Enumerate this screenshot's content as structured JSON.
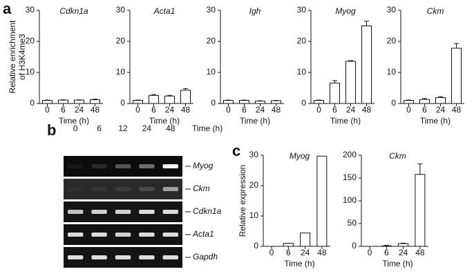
{
  "panel_labels": [
    "a",
    "b",
    "c"
  ],
  "gel": {
    "lanes": [
      "0",
      "6",
      "12",
      "24",
      "48"
    ],
    "time_label": "Time (h)",
    "genes": [
      "Myog",
      "Ckm",
      "Cdkn1a",
      "Acta1",
      "Gapdh"
    ]
  },
  "chart_data": [
    {
      "type": "bar",
      "title": "Cdkn1a",
      "ylabel": [
        "Relative enrichment",
        "of H3K4me3"
      ],
      "xlabel": "Time (h)",
      "categories": [
        "0",
        "6",
        "24",
        "48"
      ],
      "values": [
        1.0,
        1.1,
        1.1,
        1.2
      ],
      "errors": [
        0.1,
        0.1,
        0.1,
        0.2
      ],
      "ylim": [
        0,
        30
      ],
      "yticks": [
        0,
        10,
        20,
        30
      ]
    },
    {
      "type": "bar",
      "title": "Acta1",
      "xlabel": "Time (h)",
      "categories": [
        "0",
        "6",
        "24",
        "48"
      ],
      "values": [
        1.0,
        2.6,
        2.4,
        4.3
      ],
      "errors": [
        0.1,
        0.3,
        0.2,
        0.5
      ],
      "ylim": [
        0,
        30
      ],
      "yticks": [
        0,
        10,
        20,
        30
      ]
    },
    {
      "type": "bar",
      "title": "Igh",
      "xlabel": "Time (h)",
      "categories": [
        "0",
        "6",
        "24",
        "48"
      ],
      "values": [
        1.0,
        1.0,
        0.8,
        0.9
      ],
      "errors": [
        0.1,
        0.1,
        0.1,
        0.1
      ],
      "ylim": [
        0,
        30
      ],
      "yticks": [
        0,
        10,
        20,
        30
      ]
    },
    {
      "type": "bar",
      "title": "Myog",
      "xlabel": "Time (h)",
      "categories": [
        "0",
        "6",
        "24",
        "48"
      ],
      "values": [
        1.0,
        6.6,
        13.6,
        25.0
      ],
      "errors": [
        0.1,
        0.8,
        0.2,
        1.5
      ],
      "ylim": [
        0,
        30
      ],
      "yticks": [
        0,
        10,
        20,
        30
      ]
    },
    {
      "type": "bar",
      "title": "Ckm",
      "xlabel": "Time (h)",
      "categories": [
        "0",
        "6",
        "24",
        "48"
      ],
      "values": [
        1.0,
        1.3,
        1.9,
        17.8
      ],
      "errors": [
        0.1,
        0.3,
        0.3,
        1.5
      ],
      "ylim": [
        0,
        30
      ],
      "yticks": [
        0,
        10,
        20,
        30
      ]
    },
    {
      "type": "bar",
      "title": "Myog",
      "ylabel": "Relative expression",
      "xlabel": "Time (h)",
      "categories": [
        "0",
        "6",
        "24",
        "48"
      ],
      "values": [
        0,
        1.0,
        4.4,
        29.7
      ],
      "ylim": [
        0,
        30
      ],
      "yticks": [
        0,
        10,
        20,
        30
      ]
    },
    {
      "type": "bar",
      "title": "Ckm",
      "xlabel": "Time (h)",
      "categories": [
        "0",
        "6",
        "24",
        "48"
      ],
      "values": [
        0,
        1.0,
        6.0,
        158
      ],
      "errors": [
        0,
        1,
        1,
        23
      ],
      "ylim": [
        0,
        200
      ],
      "yticks": [
        0,
        50,
        100,
        150,
        200
      ]
    }
  ]
}
